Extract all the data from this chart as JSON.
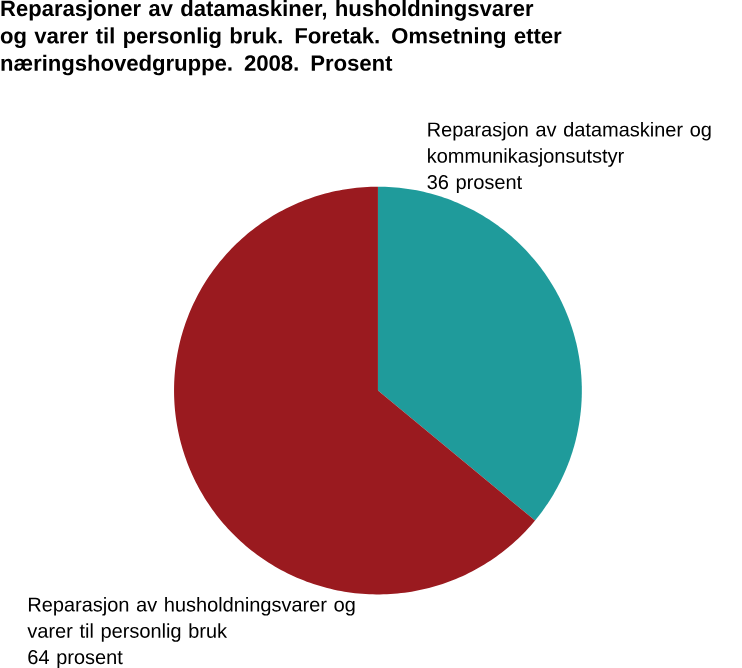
{
  "chart_data": {
    "type": "pie",
    "title": "Reparasjoner av datamaskiner, husholdningsvarer og varer til personlig bruk. Foretak. Omsetning etter næringshovedgruppe. 2008. Prosent",
    "categories": [
      "Reparasjon av datamaskiner og kommunikasjonsutstyr",
      "Reparasjon av husholdningsvarer og varer til personlig bruk"
    ],
    "values": [
      36,
      64
    ],
    "value_labels": [
      "36 prosent",
      "64 prosent"
    ],
    "colors": [
      "#1f9b9b",
      "#9a1a1f"
    ]
  }
}
